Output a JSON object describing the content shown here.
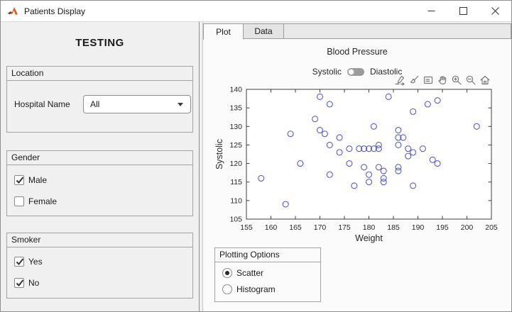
{
  "window": {
    "title": "Patients Display"
  },
  "sidebar": {
    "heading": "TESTING",
    "location": {
      "title": "Location",
      "field_label": "Hospital Name",
      "field_value": "All"
    },
    "gender": {
      "title": "Gender",
      "options": [
        {
          "label": "Male",
          "checked": true
        },
        {
          "label": "Female",
          "checked": false
        }
      ]
    },
    "smoker": {
      "title": "Smoker",
      "options": [
        {
          "label": "Yes",
          "checked": true
        },
        {
          "label": "No",
          "checked": true
        }
      ]
    }
  },
  "tabs": [
    {
      "label": "Plot",
      "selected": true
    },
    {
      "label": "Data",
      "selected": false
    }
  ],
  "plot_tab": {
    "switch": {
      "left_label": "Systolic",
      "right_label": "Diastolic",
      "selected": "Systolic",
      "knob_position": "left"
    },
    "toolbar_icons": [
      "export-icon",
      "brush-icon",
      "datatips-icon",
      "pan-icon",
      "zoom-in-icon",
      "zoom-out-icon",
      "home-icon"
    ],
    "plotting_options": {
      "title": "Plotting Options",
      "options": [
        {
          "label": "Scatter",
          "selected": true
        },
        {
          "label": "Histogram",
          "selected": false
        }
      ]
    }
  },
  "chart_data": {
    "type": "scatter",
    "title": "Blood Pressure",
    "xlabel": "Weight",
    "ylabel": "Systolic",
    "xlim": [
      155,
      205
    ],
    "ylim": [
      105,
      140
    ],
    "xticks": [
      155,
      160,
      165,
      170,
      175,
      180,
      185,
      190,
      195,
      200,
      205
    ],
    "yticks": [
      105,
      110,
      115,
      120,
      125,
      130,
      135,
      140
    ],
    "grid": false,
    "legend": null,
    "marker": "circle",
    "marker_color": "#5959d8",
    "points": [
      [
        158,
        116
      ],
      [
        163,
        109
      ],
      [
        164,
        128
      ],
      [
        166,
        120
      ],
      [
        169,
        132
      ],
      [
        170,
        138
      ],
      [
        170,
        129
      ],
      [
        171,
        128
      ],
      [
        172,
        136
      ],
      [
        172,
        125
      ],
      [
        172,
        117
      ],
      [
        174,
        127
      ],
      [
        174,
        123
      ],
      [
        176,
        124
      ],
      [
        176,
        120
      ],
      [
        177,
        114
      ],
      [
        178,
        124
      ],
      [
        179,
        124
      ],
      [
        179,
        119
      ],
      [
        180,
        124
      ],
      [
        180,
        117
      ],
      [
        180,
        115
      ],
      [
        181,
        124
      ],
      [
        181,
        130
      ],
      [
        182,
        124
      ],
      [
        182,
        125
      ],
      [
        182,
        119
      ],
      [
        183,
        118
      ],
      [
        183,
        116
      ],
      [
        183,
        115
      ],
      [
        184,
        138
      ],
      [
        186,
        129
      ],
      [
        186,
        127
      ],
      [
        186,
        125
      ],
      [
        186,
        119
      ],
      [
        186,
        118
      ],
      [
        187,
        127
      ],
      [
        188,
        124
      ],
      [
        188,
        122
      ],
      [
        189,
        134
      ],
      [
        189,
        123
      ],
      [
        189,
        114
      ],
      [
        191,
        124
      ],
      [
        192,
        136
      ],
      [
        193,
        121
      ],
      [
        194,
        137
      ],
      [
        194,
        120
      ],
      [
        202,
        130
      ]
    ]
  }
}
